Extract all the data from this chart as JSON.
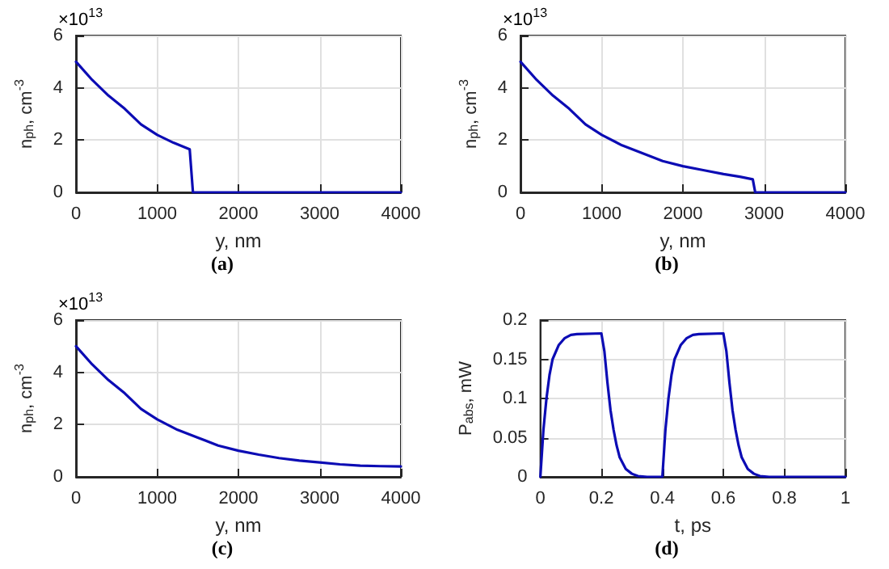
{
  "chart_data": [
    {
      "type": "line",
      "xlabel": "y, nm",
      "ylabel": "n$_{ph}$, cm$^{-3}$",
      "annotations": [
        "×10$^{13}$",
        "(a)"
      ],
      "xlim": [
        0,
        4000
      ],
      "xticks": [
        0,
        1000,
        2000,
        3000,
        4000
      ],
      "ylim": [
        0,
        6
      ],
      "yticks": [
        0,
        2,
        4,
        6
      ],
      "grid": true,
      "marker": "none",
      "line_style": "solid",
      "series": [
        {
          "color": "#0c0cb4",
          "x": [
            0,
            200,
            400,
            600,
            800,
            1000,
            1200,
            1400,
            1440,
            2000,
            3000,
            4000
          ],
          "values": [
            5,
            4.3,
            3.7,
            3.2,
            2.6,
            2.2,
            1.9,
            1.65,
            0,
            0,
            0,
            0
          ]
        }
      ]
    },
    {
      "type": "line",
      "xlabel": "y, nm",
      "ylabel": "n$_{ph}$, cm$^{-3}$",
      "annotations": [
        "×10$^{13}$",
        "(b)"
      ],
      "xlim": [
        0,
        4000
      ],
      "xticks": [
        0,
        1000,
        2000,
        3000,
        4000
      ],
      "ylim": [
        0,
        6
      ],
      "yticks": [
        0,
        2,
        4,
        6
      ],
      "grid": true,
      "marker": "none",
      "line_style": "solid",
      "series": [
        {
          "color": "#0c0cb4",
          "x": [
            0,
            200,
            400,
            600,
            800,
            1000,
            1250,
            1500,
            1750,
            2000,
            2250,
            2500,
            2700,
            2860,
            2890,
            3000,
            4000
          ],
          "values": [
            5,
            4.3,
            3.7,
            3.2,
            2.6,
            2.2,
            1.8,
            1.5,
            1.2,
            1.0,
            0.85,
            0.7,
            0.6,
            0.5,
            0,
            0,
            0
          ]
        }
      ]
    },
    {
      "type": "line",
      "xlabel": "y, nm",
      "ylabel": "n$_{ph}$, cm$^{-3}$",
      "annotations": [
        "×10$^{13}$",
        "(c)"
      ],
      "xlim": [
        0,
        4000
      ],
      "xticks": [
        0,
        1000,
        2000,
        3000,
        4000
      ],
      "ylim": [
        0,
        6
      ],
      "yticks": [
        0,
        2,
        4,
        6
      ],
      "grid": true,
      "marker": "none",
      "line_style": "solid",
      "series": [
        {
          "color": "#0c0cb4",
          "x": [
            0,
            200,
            400,
            600,
            800,
            1000,
            1250,
            1500,
            1750,
            2000,
            2250,
            2500,
            2750,
            3000,
            3250,
            3500,
            3750,
            4000
          ],
          "values": [
            5,
            4.3,
            3.7,
            3.2,
            2.6,
            2.2,
            1.8,
            1.5,
            1.2,
            1.0,
            0.85,
            0.72,
            0.62,
            0.55,
            0.48,
            0.43,
            0.41,
            0.4
          ]
        }
      ]
    },
    {
      "type": "line",
      "xlabel": "t, ps",
      "ylabel": "P$_{abs}$, mW",
      "annotations": [
        "(d)"
      ],
      "xlim": [
        0,
        1
      ],
      "xticks": [
        0,
        0.2,
        0.4,
        0.6,
        0.8,
        1
      ],
      "ylim": [
        0,
        0.2
      ],
      "yticks": [
        0,
        0.05,
        0.1,
        0.15,
        0.2
      ],
      "grid": true,
      "marker": "none",
      "line_style": "solid",
      "series": [
        {
          "color": "#0c0cb4",
          "x": [
            0,
            0.01,
            0.02,
            0.03,
            0.04,
            0.06,
            0.08,
            0.1,
            0.12,
            0.2,
            0.21,
            0.22,
            0.23,
            0.24,
            0.25,
            0.26,
            0.28,
            0.3,
            0.32,
            0.35,
            0.4,
            0.41,
            0.42,
            0.43,
            0.44,
            0.46,
            0.48,
            0.5,
            0.52,
            0.6,
            0.61,
            0.62,
            0.63,
            0.64,
            0.65,
            0.66,
            0.68,
            0.7,
            0.72,
            0.75,
            0.8,
            1
          ],
          "values": [
            0,
            0.06,
            0.1,
            0.13,
            0.15,
            0.168,
            0.177,
            0.181,
            0.182,
            0.183,
            0.16,
            0.12,
            0.085,
            0.06,
            0.04,
            0.025,
            0.01,
            0.004,
            0.001,
            0,
            0,
            0.06,
            0.1,
            0.13,
            0.15,
            0.168,
            0.177,
            0.181,
            0.182,
            0.183,
            0.16,
            0.12,
            0.085,
            0.06,
            0.04,
            0.025,
            0.01,
            0.004,
            0.001,
            0,
            0,
            0
          ]
        }
      ]
    }
  ]
}
